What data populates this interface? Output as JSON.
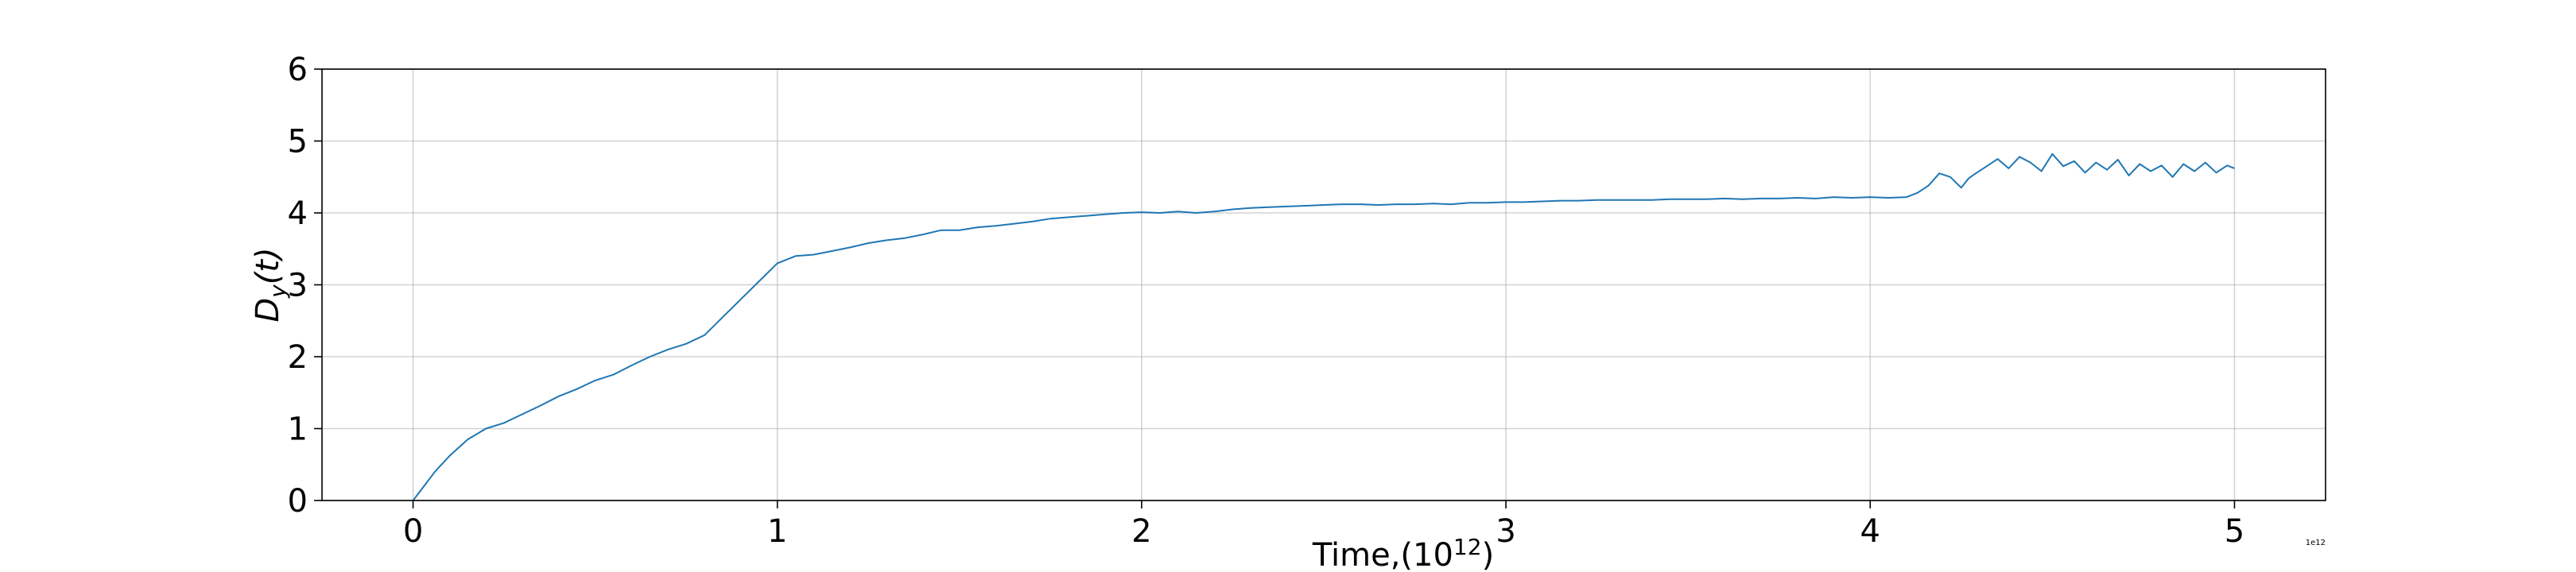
{
  "chart_data": {
    "type": "line",
    "xlabel": "Time,(10",
    "xlabel_sup": "12",
    "xlabel_close": ")",
    "ylabel_main": "D",
    "ylabel_sub": "y",
    "ylabel_arg": "(t)",
    "x_offset_label": "1e12",
    "xlim": [
      -0.25,
      5.25
    ],
    "ylim": [
      0,
      6
    ],
    "x_ticks": [
      0,
      1,
      2,
      3,
      4,
      5
    ],
    "y_ticks": [
      0,
      1,
      2,
      3,
      4,
      5,
      6
    ],
    "x_tick_labels": [
      "0",
      "1",
      "2",
      "3",
      "4",
      "5"
    ],
    "y_tick_labels": [
      "0",
      "1",
      "2",
      "3",
      "4",
      "5",
      "6"
    ],
    "grid": true,
    "line_color": "#1f77b4",
    "series": [
      {
        "x": [
          0,
          0.03,
          0.06,
          0.1,
          0.15,
          0.2,
          0.25,
          0.3,
          0.35,
          0.4,
          0.45,
          0.5,
          0.55,
          0.6,
          0.65,
          0.7,
          0.75,
          0.8,
          0.85,
          0.9,
          0.95,
          1.0,
          1.05,
          1.1,
          1.15,
          1.2,
          1.25,
          1.3,
          1.35,
          1.4,
          1.45,
          1.5,
          1.55,
          1.6,
          1.65,
          1.7,
          1.75,
          1.8,
          1.85,
          1.9,
          1.95,
          2.0,
          2.05,
          2.1,
          2.15,
          2.2,
          2.25,
          2.3,
          2.35,
          2.4,
          2.45,
          2.5,
          2.55,
          2.6,
          2.65,
          2.7,
          2.75,
          2.8,
          2.85,
          2.9,
          2.95,
          3.0,
          3.05,
          3.1,
          3.15,
          3.2,
          3.25,
          3.3,
          3.35,
          3.4,
          3.45,
          3.5,
          3.55,
          3.6,
          3.65,
          3.7,
          3.75,
          3.8,
          3.85,
          3.9,
          3.95,
          4.0,
          4.05,
          4.1,
          4.13,
          4.16,
          4.19,
          4.22,
          4.25,
          4.27,
          4.29,
          4.32,
          4.35,
          4.38,
          4.41,
          4.44,
          4.47,
          4.5,
          4.53,
          4.56,
          4.59,
          4.62,
          4.65,
          4.68,
          4.71,
          4.74,
          4.77,
          4.8,
          4.83,
          4.86,
          4.89,
          4.92,
          4.95,
          4.98,
          5.0
        ],
        "y": [
          0,
          0.2,
          0.4,
          0.62,
          0.85,
          1.0,
          1.08,
          1.2,
          1.32,
          1.45,
          1.55,
          1.67,
          1.75,
          1.88,
          2.0,
          2.1,
          2.18,
          2.3,
          2.55,
          2.8,
          3.05,
          3.3,
          3.4,
          3.42,
          3.47,
          3.52,
          3.58,
          3.62,
          3.65,
          3.7,
          3.76,
          3.76,
          3.8,
          3.82,
          3.85,
          3.88,
          3.92,
          3.94,
          3.96,
          3.98,
          4.0,
          4.01,
          4.0,
          4.02,
          4.0,
          4.02,
          4.05,
          4.07,
          4.08,
          4.09,
          4.1,
          4.11,
          4.12,
          4.12,
          4.11,
          4.12,
          4.12,
          4.13,
          4.12,
          4.14,
          4.14,
          4.15,
          4.15,
          4.16,
          4.17,
          4.17,
          4.18,
          4.18,
          4.18,
          4.18,
          4.19,
          4.19,
          4.19,
          4.2,
          4.19,
          4.2,
          4.2,
          4.21,
          4.2,
          4.22,
          4.21,
          4.22,
          4.21,
          4.22,
          4.28,
          4.38,
          4.55,
          4.5,
          4.35,
          4.48,
          4.55,
          4.65,
          4.75,
          4.62,
          4.78,
          4.7,
          4.58,
          4.82,
          4.65,
          4.72,
          4.56,
          4.7,
          4.6,
          4.74,
          4.52,
          4.68,
          4.58,
          4.66,
          4.5,
          4.68,
          4.58,
          4.7,
          4.56,
          4.66,
          4.62
        ]
      }
    ]
  }
}
